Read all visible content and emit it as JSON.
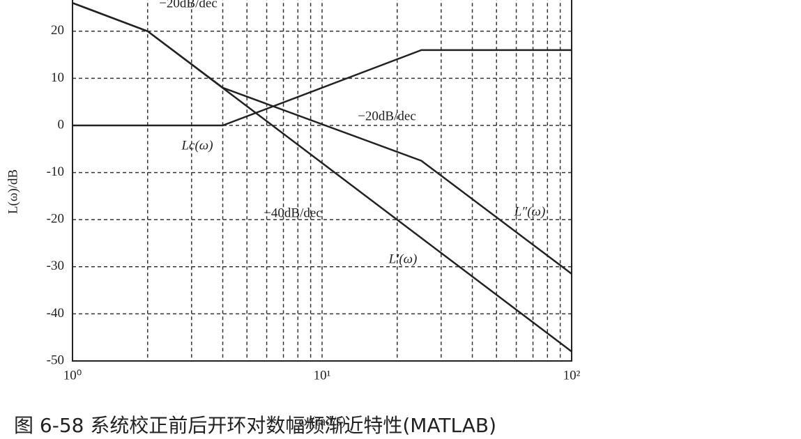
{
  "chart_data": {
    "type": "line",
    "x_label": "ω/(rad/s)",
    "y_label": "L(ω)/dB",
    "caption": "图 6-58  系统校正前后开环对数幅频渐近特性(MATLAB)",
    "log_x": true,
    "grid": true,
    "xlim": [
      1,
      100
    ],
    "ylim": [
      -50,
      30
    ],
    "xticks": [
      {
        "value": 1,
        "label": "10⁰"
      },
      {
        "value": 10,
        "label": "10¹"
      },
      {
        "value": 100,
        "label": "10²"
      }
    ],
    "xminor": [
      2,
      3,
      4,
      5,
      6,
      7,
      8,
      9,
      20,
      30,
      40,
      50,
      60,
      70,
      80,
      90
    ],
    "yticks": [
      -50,
      -40,
      -30,
      -20,
      -10,
      0,
      10,
      20
    ],
    "series": [
      {
        "name": "L′(ω)",
        "color": "#222222",
        "x": [
          1,
          2,
          100
        ],
        "values": [
          26,
          20,
          -48
        ]
      },
      {
        "name": "L″(ω)",
        "color": "#222222",
        "x": [
          1,
          2,
          4,
          25,
          100
        ],
        "values": [
          26,
          20,
          8,
          -7.5,
          -31.5
        ]
      },
      {
        "name": "Lc(ω)",
        "color": "#222222",
        "x": [
          1,
          4,
          25,
          100
        ],
        "values": [
          0,
          0,
          16,
          16
        ]
      }
    ],
    "annotations": [
      "−20dB/dec",
      "−20dB/dec",
      "−40dB/dec"
    ]
  }
}
